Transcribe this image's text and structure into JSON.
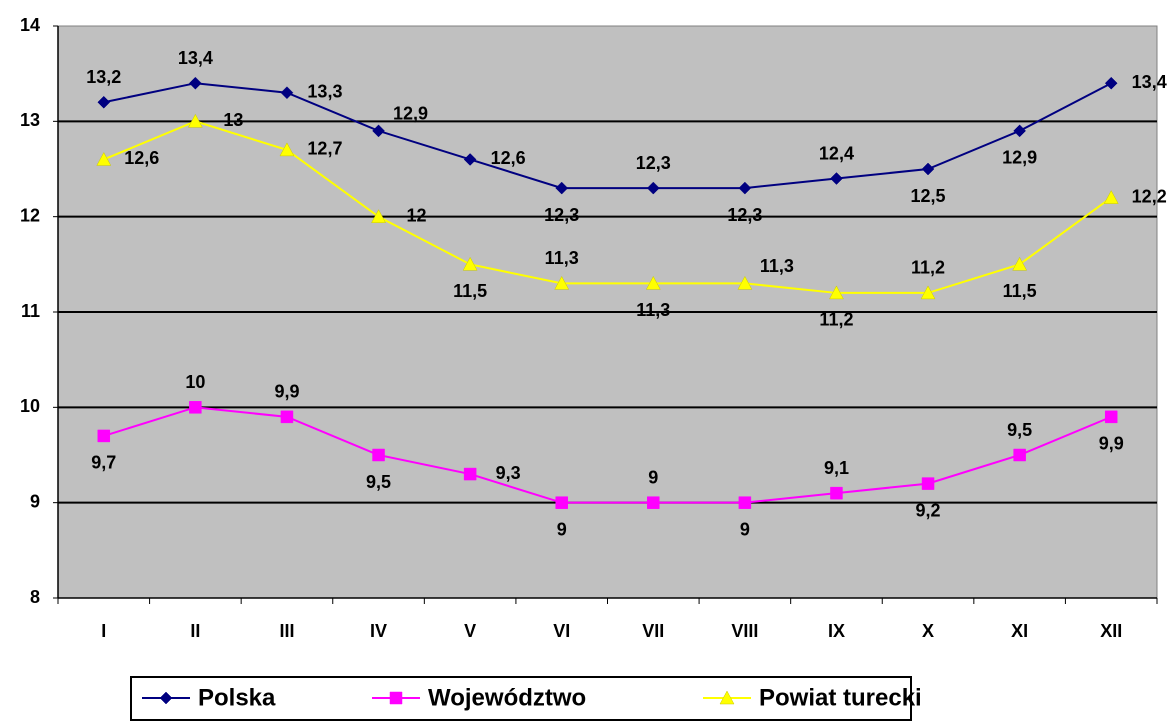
{
  "chart_data": {
    "type": "line",
    "categories": [
      "I",
      "II",
      "III",
      "IV",
      "V",
      "VI",
      "VII",
      "VIII",
      "IX",
      "X",
      "XI",
      "XII"
    ],
    "series": [
      {
        "name": "Polska",
        "color": "#000080",
        "marker": "diamond",
        "values": [
          13.2,
          13.4,
          13.3,
          12.9,
          12.6,
          12.3,
          12.3,
          12.3,
          12.4,
          12.5,
          12.9,
          13.4
        ],
        "value_labels": [
          "13,2",
          "13,4",
          "13,3",
          "12,9",
          "12,6",
          "12,3",
          "12,3",
          "12,3",
          "12,4",
          "12,5",
          "12,9",
          "13,4"
        ]
      },
      {
        "name": "Województwo",
        "color": "#ff00ff",
        "marker": "square",
        "values": [
          9.7,
          10,
          9.9,
          9.5,
          9.3,
          9,
          9,
          9,
          9.1,
          9.2,
          9.5,
          9.9
        ],
        "value_labels": [
          "9,7",
          "10",
          "9,9",
          "9,5",
          "9,3",
          "9",
          "9",
          "9",
          "9,1",
          "9,2",
          "9,5",
          "9,9"
        ]
      },
      {
        "name": "Powiat turecki",
        "color": "#ffff00",
        "marker": "triangle",
        "values": [
          12.6,
          13,
          12.7,
          12,
          11.5,
          11.3,
          11.3,
          11.3,
          11.2,
          11.2,
          11.5,
          12.2
        ],
        "value_labels": [
          "12,6",
          "13",
          "12,7",
          "12",
          "11,5",
          "11,3",
          "11,3",
          "11,3",
          "11,2",
          "11,2",
          "11,5",
          "12,2"
        ]
      }
    ],
    "ylim": [
      8,
      14
    ],
    "yticks": [
      8,
      9,
      10,
      11,
      12,
      13,
      14
    ],
    "grid": true,
    "legend": "bottom"
  }
}
